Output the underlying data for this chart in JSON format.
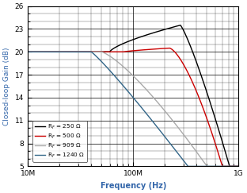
{
  "title": "",
  "xlabel": "Frequency (Hz)",
  "ylabel": "Closed-loop Gain (dB)",
  "xlim": [
    10000000.0,
    1000000000.0
  ],
  "ylim": [
    5,
    26
  ],
  "yticks": [
    5,
    8,
    11,
    14,
    17,
    20,
    23,
    26
  ],
  "series": [
    {
      "label": "Rₙ = 250 Ω",
      "color": "#000000",
      "lw": 1.0
    },
    {
      "label": "Rₙ = 500 Ω",
      "color": "#cc0000",
      "lw": 1.0
    },
    {
      "label": "Rₙ = 909 Ω",
      "color": "#aaaaaa",
      "lw": 1.0
    },
    {
      "label": "Rₙ = 1240 Ω",
      "color": "#336688",
      "lw": 1.0
    }
  ]
}
